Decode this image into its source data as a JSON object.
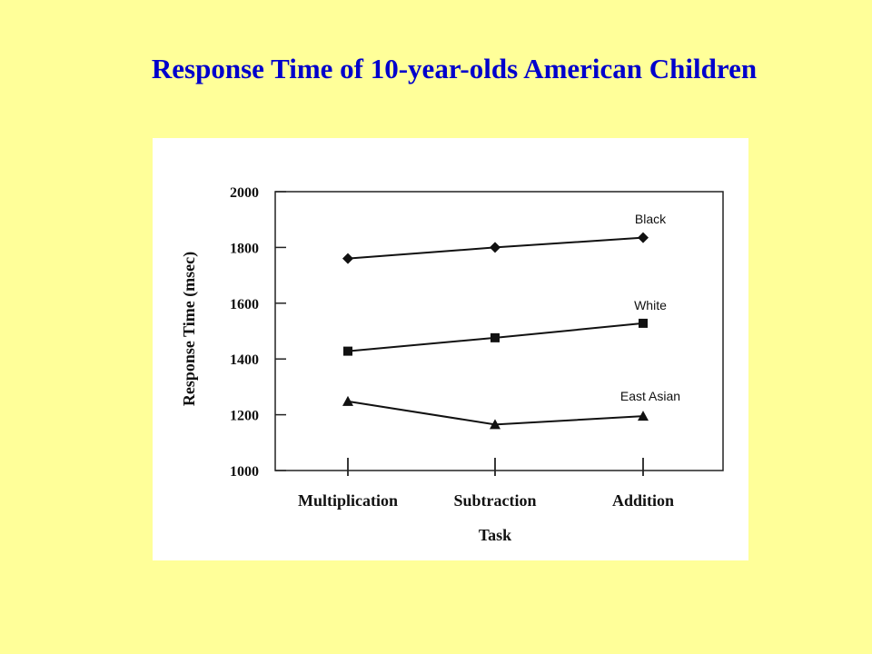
{
  "slide": {
    "title": "Response Time of 10-year-olds American Children",
    "title_color": "#0000cc",
    "background": "#ffff99"
  },
  "chart_data": {
    "type": "line",
    "title": "",
    "xlabel": "Task",
    "ylabel": "Response Time (msec)",
    "categories": [
      "Multiplication",
      "Subtraction",
      "Addition"
    ],
    "ylim": [
      1000,
      2000
    ],
    "yticks": [
      1000,
      1200,
      1400,
      1600,
      1800,
      2000
    ],
    "grid": false,
    "series": [
      {
        "name": "Black",
        "marker": "diamond",
        "values": [
          1760,
          1800,
          1835
        ]
      },
      {
        "name": "White",
        "marker": "square",
        "values": [
          1428,
          1476,
          1528
        ]
      },
      {
        "name": "East Asian",
        "marker": "triangle",
        "values": [
          1248,
          1165,
          1195
        ]
      }
    ]
  }
}
